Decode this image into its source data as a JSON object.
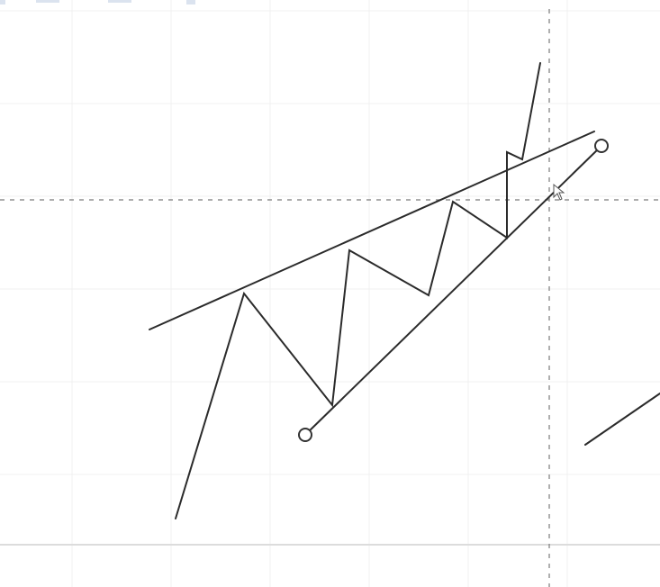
{
  "app": {
    "name": "",
    "view": "charting canvas"
  },
  "colors": {
    "background": "#ffffff",
    "grid": "#f0f0f0",
    "crosshair": "#7a7a7a",
    "line": "#2b2b2b",
    "handle_fill": "#ffffff",
    "handle_stroke": "#333333",
    "top_strip": "#dbe3ef"
  },
  "tools": {
    "crosshair": {
      "icon": "crosshair-icon"
    },
    "cursor": {
      "icon": "arrow-cursor-icon"
    },
    "trendline_handles": {
      "icon": "circle-handle-icon"
    }
  }
}
